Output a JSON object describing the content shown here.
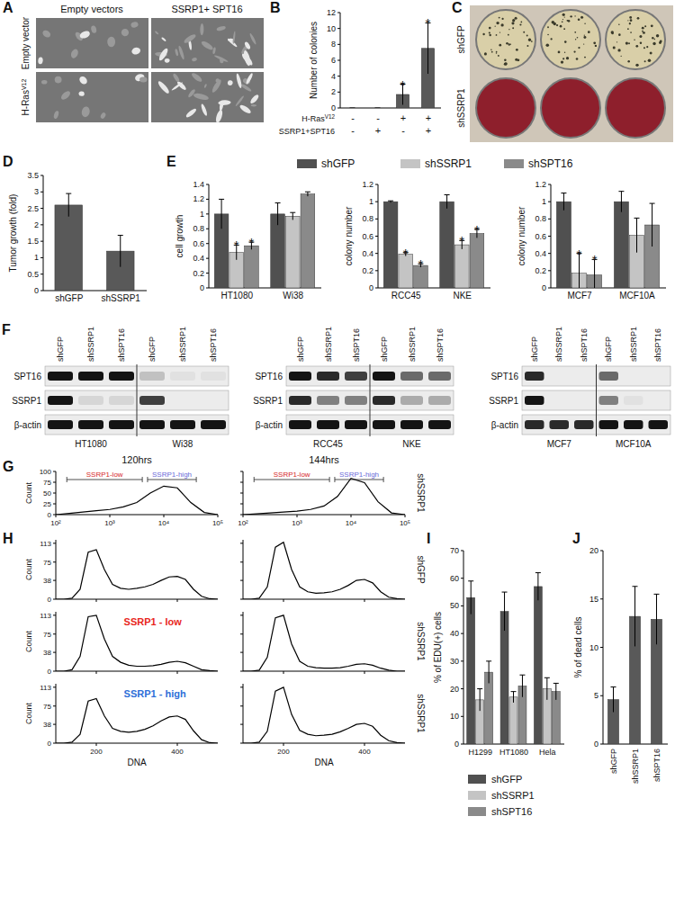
{
  "chart_data": [
    {
      "panel": "B",
      "type": "bar",
      "y_label": "Number of colonies",
      "categories": [
        null,
        null,
        null,
        null
      ],
      "series": [
        {
          "color": "#595959",
          "values": [
            0,
            0,
            1.7,
            7.5
          ],
          "errors": [
            0,
            0,
            1.3,
            3.2
          ],
          "significant": [
            false,
            false,
            true,
            true
          ]
        }
      ],
      "significance_mark": "*",
      "ylim": [
        0,
        12
      ],
      "yticks": [
        0,
        2,
        4,
        6,
        8,
        10,
        12
      ],
      "conditions": [
        {
          "label": {
            "text": "H-Ras",
            "sup": "V12"
          },
          "values": [
            "-",
            "-",
            "+",
            "+"
          ]
        },
        {
          "label": {
            "text": "SSRP1+SPT16"
          },
          "values": [
            "-",
            "+",
            "-",
            "+"
          ]
        }
      ]
    },
    {
      "panel": "D",
      "type": "bar",
      "y_label": "Tumor growth (fold)",
      "categories": [
        "shGFP",
        "shSSRP1"
      ],
      "series": [
        {
          "color": "#595959",
          "values": [
            2.6,
            1.2
          ],
          "errors": [
            0.35,
            0.48
          ]
        }
      ],
      "ylim": [
        0,
        3.5
      ],
      "yticks": [
        0,
        0.5,
        1,
        1.5,
        2,
        2.5,
        3,
        3.5
      ]
    },
    {
      "panel": "E",
      "type": "bar",
      "legend": "top",
      "y_label": "cell growth",
      "categories": [
        "HT1080",
        "Wi38"
      ],
      "series": [
        {
          "name": "shGFP",
          "color": "#505050",
          "values": [
            1,
            1
          ],
          "errors": [
            0.2,
            0.15
          ]
        },
        {
          "name": "shSSRP1",
          "color": "#c4c4c4",
          "values": [
            0.48,
            0.97
          ],
          "errors": [
            0.1,
            0.05
          ],
          "significant": [
            true,
            false
          ]
        },
        {
          "name": "shSPT16",
          "color": "#8a8a8a",
          "values": [
            0.57,
            1.27
          ],
          "errors": [
            0.05,
            0.03
          ],
          "significant": [
            true,
            false
          ]
        }
      ],
      "significance_mark": "*",
      "ylim": [
        0,
        1.4
      ],
      "yticks": [
        0,
        0.2,
        0.4,
        0.6,
        0.8,
        1,
        1.2,
        1.4
      ]
    },
    {
      "type": "bar",
      "y_label": "colony number",
      "categories": [
        "RCC45",
        "NKE"
      ],
      "series": [
        {
          "color": "#505050",
          "values": [
            1,
            1
          ],
          "errors": [
            0.01,
            0.08
          ]
        },
        {
          "color": "#c4c4c4",
          "values": [
            0.39,
            0.5
          ],
          "errors": [
            0.02,
            0.05
          ],
          "significant": [
            true,
            true
          ]
        },
        {
          "color": "#8a8a8a",
          "values": [
            0.26,
            0.63
          ],
          "errors": [
            0.02,
            0.05
          ],
          "significant": [
            true,
            true
          ]
        }
      ],
      "significance_mark": "*",
      "ylim": [
        0,
        1.2
      ],
      "yticks": [
        0,
        0.2,
        0.4,
        0.6,
        0.8,
        1,
        1.2
      ]
    },
    {
      "type": "bar",
      "y_label": "colony number",
      "categories": [
        "MCF7",
        "MCF10A"
      ],
      "series": [
        {
          "color": "#505050",
          "values": [
            1,
            1
          ],
          "errors": [
            0.1,
            0.12
          ]
        },
        {
          "color": "#c4c4c4",
          "values": [
            0.17,
            0.61
          ],
          "errors": [
            0.23,
            0.2
          ],
          "significant": [
            true,
            false
          ]
        },
        {
          "color": "#8a8a8a",
          "values": [
            0.15,
            0.73
          ],
          "errors": [
            0.18,
            0.25
          ],
          "significant": [
            true,
            false
          ]
        }
      ],
      "significance_mark": "*",
      "ylim": [
        0,
        1.2
      ],
      "yticks": [
        0,
        0.2,
        0.4,
        0.6,
        0.8,
        1,
        1.2
      ]
    },
    {
      "panel": "G",
      "type": "line",
      "title": "120hrs",
      "log": "x",
      "y_label": "Count",
      "x": [
        100,
        178,
        316,
        562,
        1000,
        1778,
        3162,
        5623,
        10000,
        17783,
        31623,
        56234,
        100000
      ],
      "series": [
        {
          "color": "#000000",
          "values": [
            0,
            3,
            6,
            9,
            12,
            18,
            28,
            50,
            66,
            62,
            28,
            5,
            0
          ]
        }
      ],
      "xlim": [
        100,
        100000
      ],
      "xticks": [
        {
          "value": 100,
          "label": "10²"
        },
        {
          "value": 1000,
          "label": "10³"
        },
        {
          "value": 10000,
          "label": "10⁴"
        },
        {
          "value": 100000,
          "label": "10⁵"
        }
      ],
      "ylim": [
        0,
        100
      ],
      "yticks": [
        0,
        25,
        50,
        75,
        100
      ],
      "annotations": [
        {
          "text": "SSRP1-low",
          "range": [
            160,
            4000
          ],
          "color": "#d62728"
        },
        {
          "text": "SSRP1-high",
          "range": [
            5000,
            40000
          ],
          "color": "#6a6ad8"
        }
      ]
    },
    {
      "type": "line",
      "title": "144hrs",
      "log": "x",
      "row_label": "shSSRP1",
      "tick_labels": "x",
      "x": [
        100,
        178,
        316,
        562,
        1000,
        1778,
        3162,
        5623,
        10000,
        17783,
        31623,
        56234,
        100000
      ],
      "series": [
        {
          "color": "#000000",
          "values": [
            0,
            2,
            4,
            6,
            8,
            12,
            20,
            42,
            84,
            74,
            30,
            4,
            0
          ]
        }
      ],
      "xlim": [
        100,
        100000
      ],
      "xticks": [
        {
          "value": 100,
          "label": "10²"
        },
        {
          "value": 1000,
          "label": "10³"
        },
        {
          "value": 10000,
          "label": "10⁴"
        },
        {
          "value": 100000,
          "label": "10⁵"
        }
      ],
      "ylim": [
        0,
        100
      ],
      "yticks": [
        0,
        25,
        50,
        75,
        100
      ],
      "annotations": [
        {
          "text": "SSRP1-low",
          "range": [
            160,
            4000
          ],
          "color": "#d62728"
        },
        {
          "text": "SSRP1-high",
          "range": [
            5000,
            40000
          ],
          "color": "#6a6ad8"
        }
      ]
    },
    {
      "panel": "H",
      "type": "line",
      "y_label": "Count",
      "tick_labels": "y",
      "x": [
        100,
        120,
        140,
        160,
        180,
        200,
        220,
        240,
        260,
        280,
        300,
        320,
        340,
        360,
        380,
        400,
        420,
        440,
        460,
        480,
        500
      ],
      "series": [
        {
          "color": "#000000",
          "values": [
            0,
            0,
            2,
            20,
            95,
            100,
            60,
            30,
            22,
            20,
            22,
            25,
            30,
            38,
            45,
            46,
            40,
            20,
            6,
            1,
            0
          ]
        }
      ],
      "xlim": [
        100,
        500
      ],
      "xticks": [
        200,
        400
      ],
      "ylim": [
        0,
        120
      ],
      "yticks": [
        0,
        38,
        75,
        113
      ]
    },
    {
      "type": "line",
      "row_label": "shGFP",
      "tick_labels": false,
      "x": [
        100,
        120,
        140,
        160,
        180,
        200,
        220,
        240,
        260,
        280,
        300,
        320,
        340,
        360,
        380,
        400,
        420,
        440,
        460,
        480,
        500
      ],
      "series": [
        {
          "color": "#000000",
          "values": [
            0,
            0,
            2,
            25,
            105,
            115,
            60,
            25,
            15,
            12,
            13,
            15,
            20,
            28,
            38,
            40,
            33,
            15,
            4,
            1,
            0
          ]
        }
      ],
      "xlim": [
        100,
        500
      ],
      "xticks": [
        200,
        400
      ],
      "ylim": [
        0,
        120
      ],
      "yticks": [
        0,
        38,
        75,
        113
      ]
    },
    {
      "type": "line",
      "y_label": "Count",
      "tick_labels": "y",
      "x": [
        100,
        120,
        140,
        160,
        180,
        200,
        220,
        240,
        260,
        280,
        300,
        320,
        340,
        360,
        380,
        400,
        420,
        440,
        460,
        480,
        500
      ],
      "series": [
        {
          "color": "#000000",
          "values": [
            0,
            0,
            3,
            30,
            110,
            113,
            65,
            30,
            18,
            12,
            10,
            10,
            11,
            14,
            18,
            20,
            17,
            10,
            3,
            1,
            0
          ]
        }
      ],
      "xlim": [
        100,
        500
      ],
      "xticks": [
        200,
        400
      ],
      "ylim": [
        0,
        120
      ],
      "yticks": [
        0,
        38,
        75,
        113
      ],
      "annotations": [
        {
          "text": "SSRP1 - low",
          "color": "#e8261c"
        }
      ]
    },
    {
      "type": "line",
      "row_label": "shSSRP1",
      "tick_labels": false,
      "x": [
        100,
        120,
        140,
        160,
        180,
        200,
        220,
        240,
        260,
        280,
        300,
        320,
        340,
        360,
        380,
        400,
        420,
        440,
        460,
        480,
        500
      ],
      "series": [
        {
          "color": "#000000",
          "values": [
            0,
            0,
            2,
            28,
            108,
            113,
            55,
            20,
            10,
            7,
            6,
            6,
            7,
            10,
            14,
            15,
            12,
            6,
            2,
            0,
            0
          ]
        }
      ],
      "xlim": [
        100,
        500
      ],
      "xticks": [
        200,
        400
      ],
      "ylim": [
        0,
        120
      ],
      "yticks": [
        0,
        38,
        75,
        113
      ]
    },
    {
      "type": "line",
      "y_label": "Count",
      "x_label": "DNA",
      "x": [
        100,
        120,
        140,
        160,
        180,
        200,
        220,
        240,
        260,
        280,
        300,
        320,
        340,
        360,
        380,
        400,
        420,
        440,
        460,
        480,
        500
      ],
      "series": [
        {
          "color": "#000000",
          "values": [
            0,
            0,
            2,
            18,
            85,
            90,
            55,
            30,
            24,
            22,
            24,
            28,
            35,
            45,
            53,
            55,
            48,
            25,
            7,
            1,
            0
          ]
        }
      ],
      "xlim": [
        100,
        500
      ],
      "xticks": [
        200,
        400
      ],
      "ylim": [
        0,
        120
      ],
      "yticks": [
        0,
        38,
        75,
        113
      ],
      "annotations": [
        {
          "text": "SSRP1 - high",
          "color": "#2e6fd8"
        }
      ]
    },
    {
      "type": "line",
      "row_label": "shSSRP1",
      "x_label": "DNA",
      "tick_labels": "x",
      "x": [
        100,
        120,
        140,
        160,
        180,
        200,
        220,
        240,
        260,
        280,
        300,
        320,
        340,
        360,
        380,
        400,
        420,
        440,
        460,
        480,
        500
      ],
      "series": [
        {
          "color": "#000000",
          "values": [
            0,
            0,
            2,
            24,
            105,
            113,
            58,
            26,
            18,
            15,
            16,
            18,
            23,
            30,
            38,
            40,
            34,
            16,
            5,
            1,
            0
          ]
        }
      ],
      "xlim": [
        100,
        500
      ],
      "xticks": [
        200,
        400
      ],
      "ylim": [
        0,
        120
      ],
      "yticks": [
        0,
        38,
        75,
        113
      ]
    },
    {
      "panel": "I",
      "type": "bar",
      "legend": "bottom",
      "y_label": "% of EDU(+) cells",
      "categories": [
        "H1299",
        "HT1080",
        "Hela"
      ],
      "series": [
        {
          "name": "shGFP",
          "color": "#505050",
          "values": [
            53,
            48,
            57
          ],
          "errors": [
            6,
            7,
            5
          ]
        },
        {
          "name": "shSSRP1",
          "color": "#c4c4c4",
          "values": [
            16,
            17,
            20
          ],
          "errors": [
            4,
            2,
            4
          ]
        },
        {
          "name": "shSPT16",
          "color": "#8a8a8a",
          "values": [
            26,
            21,
            19
          ],
          "errors": [
            4,
            4,
            3
          ]
        }
      ],
      "ylim": [
        0,
        70
      ],
      "yticks": [
        0,
        10,
        20,
        30,
        40,
        50,
        60,
        70
      ]
    },
    {
      "panel": "J",
      "type": "bar",
      "y_label": "% of dead cells",
      "categories": [
        "shGFP",
        "shSSRP1",
        "shSPT16"
      ],
      "series": [
        {
          "color": "#595959",
          "values": [
            4.6,
            13.2,
            12.9
          ],
          "errors": [
            1.3,
            3.1,
            2.6
          ]
        }
      ],
      "ylim": [
        0,
        20
      ],
      "yticks": [
        0,
        5,
        10,
        15,
        20
      ]
    }
  ],
  "images": [
    {
      "panel": "A",
      "columns": [
        "Empty vectors",
        "SSRP1+ SPT16"
      ],
      "rows": [
        {
          "text": "Empty vector"
        },
        {
          "text": "H-Ras",
          "sup": "V12"
        }
      ]
    },
    {
      "panel": "C",
      "rows": [
        {
          "label": "shGFP",
          "plates": 3
        },
        {
          "label": "shSSRP1",
          "plates": 3
        }
      ]
    }
  ],
  "blots": {
    "panel": "F",
    "groups": [
      {
        "cell_lines": [
          "HT1080",
          "Wi38"
        ],
        "lanes": [
          "shGFP",
          "shSSRP1",
          "shSPT16",
          "shGFP",
          "shSSRP1",
          "shSPT16"
        ],
        "rows": [
          {
            "label": "SPT16",
            "bands": [
              1,
              1,
              1,
              0.2,
              0.05,
              0.05
            ]
          },
          {
            "label": "SSRP1",
            "bands": [
              1,
              0.1,
              0.1,
              0.8,
              0,
              0
            ]
          },
          {
            "label": "β-actin",
            "bands": [
              1,
              1,
              1,
              1,
              1,
              1
            ]
          }
        ]
      },
      {
        "cell_lines": [
          "RCC45",
          "NKE"
        ],
        "lanes": [
          "shGFP",
          "shSSRP1",
          "shSPT16",
          "shGFP",
          "shSSRP1",
          "shSPT16"
        ],
        "rows": [
          {
            "label": "SPT16",
            "bands": [
              1,
              0.9,
              0.8,
              1,
              0.6,
              0.6
            ]
          },
          {
            "label": "SSRP1",
            "bands": [
              0.9,
              0.5,
              0.5,
              0.9,
              0.3,
              0.3
            ]
          },
          {
            "label": "β-actin",
            "bands": [
              1,
              1,
              1,
              1,
              1,
              1
            ]
          }
        ]
      },
      {
        "cell_lines": [
          "MCF7",
          "MCF10A"
        ],
        "lanes": [
          "shGFP",
          "shSSRP1",
          "shSPT16",
          "shGFP",
          "shSSRP1",
          "shSPT16"
        ],
        "rows": [
          {
            "label": "SPT16",
            "bands": [
              0.9,
              0,
              0,
              0.6,
              0,
              0
            ]
          },
          {
            "label": "SSRP1",
            "bands": [
              1,
              0,
              0,
              0.5,
              0.05,
              0
            ]
          },
          {
            "label": "β-actin",
            "bands": [
              0.9,
              0.9,
              0.9,
              1,
              1,
              1
            ]
          }
        ]
      }
    ]
  }
}
